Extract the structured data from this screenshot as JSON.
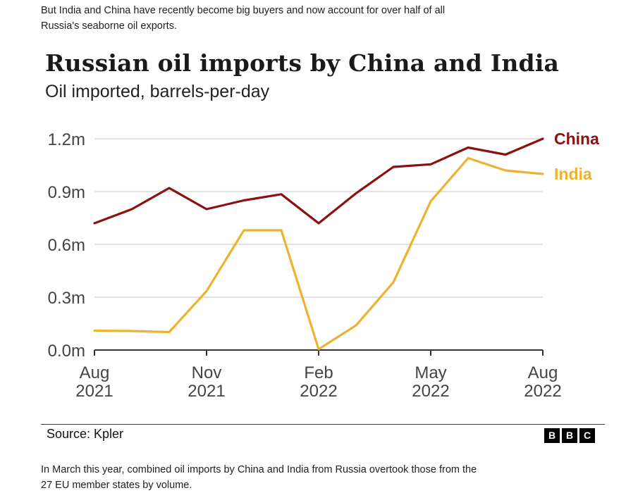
{
  "intro_text": "But India and China have recently become big buyers and now account for over half of all Russia's seaborne oil exports.",
  "source": "Source: Kpler",
  "logo_letters": [
    "B",
    "B",
    "C"
  ],
  "outro_text": "In March this year, combined oil imports by China and India from Russia overtook those from the 27 EU member states by volume.",
  "colors": {
    "china": "#8b1111",
    "india": "#edb22f",
    "grid": "#d9d9d9",
    "axis": "#333333"
  },
  "chart_data": {
    "type": "line",
    "title": "Russian oil imports by China and India",
    "subtitle": "Oil imported, barrels-per-day",
    "x": [
      "2021-08",
      "2021-09",
      "2021-10",
      "2021-11",
      "2021-12",
      "2022-01",
      "2022-02",
      "2022-03",
      "2022-04",
      "2022-05",
      "2022-06",
      "2022-07",
      "2022-08"
    ],
    "x_ticks": [
      {
        "month": "2021-08",
        "label": [
          "Aug",
          "2021"
        ]
      },
      {
        "month": "2021-11",
        "label": [
          "Nov",
          "2021"
        ]
      },
      {
        "month": "2022-02",
        "label": [
          "Feb",
          "2022"
        ]
      },
      {
        "month": "2022-05",
        "label": [
          "May",
          "2022"
        ]
      },
      {
        "month": "2022-08",
        "label": [
          "Aug",
          "2022"
        ]
      }
    ],
    "y_ticks": [
      {
        "value": 0,
        "label": "0.0m"
      },
      {
        "value": 300000,
        "label": "0.3m"
      },
      {
        "value": 600000,
        "label": "0.6m"
      },
      {
        "value": 900000,
        "label": "0.9m"
      },
      {
        "value": 1200000,
        "label": "1.2m"
      }
    ],
    "ylim": [
      0,
      1200000
    ],
    "grid": true,
    "legend": "direct labels at line ends",
    "series": [
      {
        "name": "China",
        "color": "#8b1111",
        "values": [
          720000,
          800000,
          920000,
          800000,
          850000,
          885000,
          720000,
          890000,
          1040000,
          1055000,
          1150000,
          1110000,
          1200000
        ]
      },
      {
        "name": "India",
        "color": "#edb22f",
        "values": [
          110000,
          108000,
          102000,
          335000,
          680000,
          680000,
          5000,
          140000,
          385000,
          845000,
          1090000,
          1020000,
          1000000
        ]
      }
    ]
  }
}
